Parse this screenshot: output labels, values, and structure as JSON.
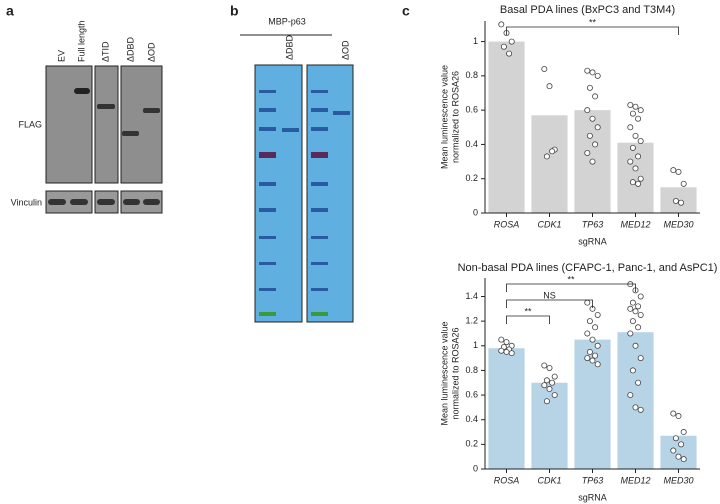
{
  "panels": {
    "a": {
      "label": "a",
      "lanes": [
        "EV",
        "Full length",
        "ΔTID",
        "ΔDBD",
        "ΔOD"
      ],
      "rows": [
        "FLAG",
        "Vinculin"
      ]
    },
    "b": {
      "label": "b",
      "title": "MBP-p63",
      "lanes": [
        "ΔDBD",
        "ΔOD"
      ]
    },
    "c": {
      "label": "c"
    }
  },
  "chart_data": [
    {
      "type": "bar",
      "title": "Basal PDA lines (BxPC3 and T3M4)",
      "xlabel": "sgRNA",
      "ylabel": [
        "Mean luminescence value",
        "normalized to ROSA26"
      ],
      "categories": [
        "ROSA",
        "CDK1",
        "TP63",
        "MED12",
        "MED30"
      ],
      "values": [
        1.0,
        0.57,
        0.6,
        0.41,
        0.15
      ],
      "color": "#d3d3d3",
      "points": [
        [
          1.1,
          1.05,
          1.0,
          0.97,
          0.93
        ],
        [
          0.84,
          0.74,
          0.37,
          0.33,
          0.36
        ],
        [
          0.83,
          0.82,
          0.8,
          0.73,
          0.68,
          0.6,
          0.55,
          0.5,
          0.45,
          0.4,
          0.35,
          0.3
        ],
        [
          0.63,
          0.62,
          0.6,
          0.58,
          0.55,
          0.5,
          0.45,
          0.42,
          0.38,
          0.33,
          0.3,
          0.26,
          0.2,
          0.18,
          0.17
        ],
        [
          0.25,
          0.24,
          0.17,
          0.07,
          0.06
        ]
      ],
      "annotations": [
        {
          "text": "**",
          "between": [
            "ROSA",
            "MED30"
          ]
        }
      ],
      "ylim": [
        0,
        1.12
      ],
      "yticks": [
        0,
        0.2,
        0.4,
        0.6,
        0.8,
        1
      ]
    },
    {
      "type": "bar",
      "title": "Non-basal PDA lines (CFAPC-1, Panc-1, and AsPC1)",
      "xlabel": "sgRNA",
      "ylabel": [
        "Mean luminescence value",
        "normalized to ROSA26"
      ],
      "categories": [
        "ROSA",
        "CDK1",
        "TP63",
        "MED12",
        "MED30"
      ],
      "values": [
        0.98,
        0.7,
        1.05,
        1.11,
        0.27
      ],
      "color": "#b7d3e6",
      "points": [
        [
          1.05,
          1.03,
          1.0,
          0.99,
          0.97,
          0.96,
          0.95,
          0.94
        ],
        [
          0.84,
          0.82,
          0.75,
          0.72,
          0.7,
          0.68,
          0.65,
          0.6,
          0.55
        ],
        [
          1.35,
          1.3,
          1.25,
          1.2,
          1.15,
          1.1,
          1.05,
          1.0,
          0.95,
          0.92,
          0.9,
          0.88,
          0.85
        ],
        [
          1.5,
          1.45,
          1.4,
          1.35,
          1.32,
          1.3,
          1.28,
          1.25,
          1.2,
          1.15,
          1.1,
          1.0,
          0.9,
          0.8,
          0.7,
          0.6,
          0.5,
          0.48
        ],
        [
          0.45,
          0.43,
          0.3,
          0.25,
          0.2,
          0.15,
          0.1,
          0.08
        ]
      ],
      "annotations": [
        {
          "text": "**",
          "between": [
            "ROSA",
            "CDK1"
          ]
        },
        {
          "text": "NS",
          "between": [
            "ROSA",
            "TP63"
          ]
        },
        {
          "text": "**",
          "between": [
            "ROSA",
            "MED12"
          ]
        }
      ],
      "ylim": [
        0,
        1.55
      ],
      "yticks": [
        0,
        0.2,
        0.4,
        0.6,
        0.8,
        1,
        1.2,
        1.4
      ]
    }
  ]
}
